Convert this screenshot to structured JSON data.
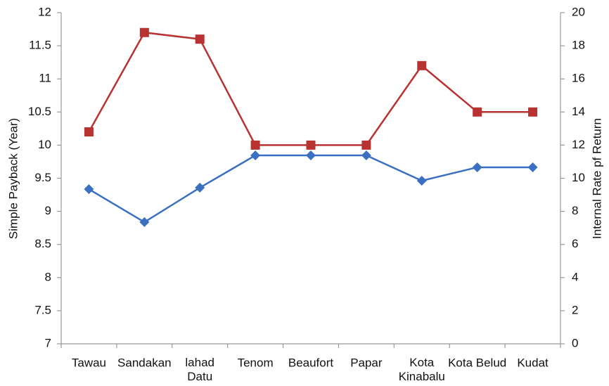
{
  "chart_data": {
    "type": "line",
    "y_label": "Simple Payback (Year)",
    "y2_label": "Internal Rate pf Return",
    "categories": [
      "Tawau",
      "Sandakan",
      "lahad\nDatu",
      "Tenom",
      "Beaufort",
      "Papar",
      "Kota\nKinabalu",
      "Kota Belud",
      "Kudat"
    ],
    "series": [
      {
        "color": "#b83232",
        "marker": "square",
        "values": [
          10.2,
          11.7,
          11.6,
          10,
          10,
          10,
          11.2,
          10.5,
          10.5
        ]
      },
      {
        "color": "#3a6fc1",
        "marker": "diamond",
        "axis": "y2",
        "values": [
          9.34,
          7.35,
          9.43,
          11.38,
          11.38,
          11.38,
          9.85,
          10.66,
          10.66
        ]
      }
    ],
    "ylim": [
      7,
      12
    ],
    "yticks": [
      7,
      7.5,
      8,
      8.5,
      9,
      9.5,
      10,
      10.5,
      11,
      11.5,
      12
    ],
    "y2lim": [
      0,
      20
    ],
    "y2ticks": [
      0,
      2,
      4,
      6,
      8,
      10,
      12,
      14,
      16,
      18,
      20
    ]
  }
}
